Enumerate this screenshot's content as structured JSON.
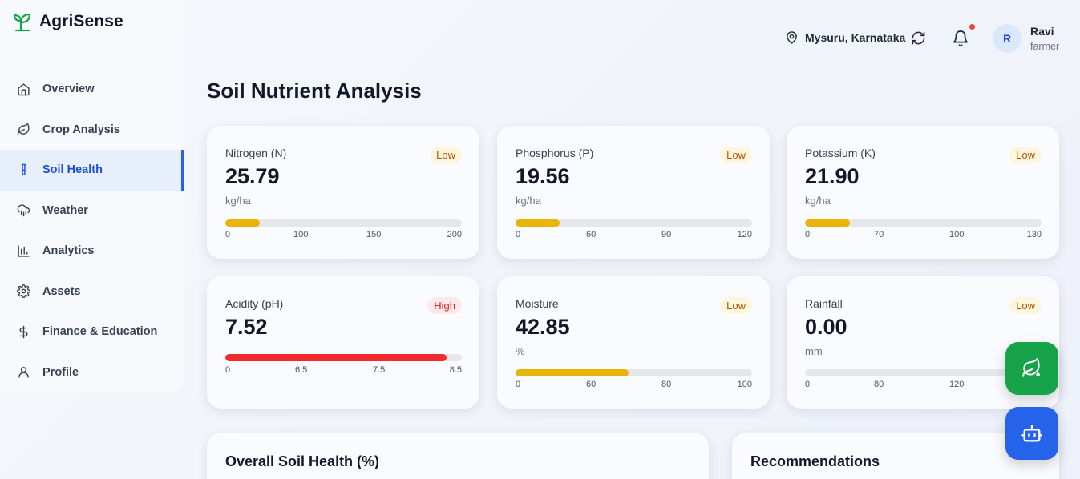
{
  "app": {
    "name": "AgriSense"
  },
  "nav": [
    {
      "label": "Overview",
      "icon": "home-icon"
    },
    {
      "label": "Crop Analysis",
      "icon": "leaf-icon"
    },
    {
      "label": "Soil Health",
      "icon": "test-tube-icon",
      "active": true
    },
    {
      "label": "Weather",
      "icon": "cloud-rain-icon"
    },
    {
      "label": "Analytics",
      "icon": "bar-chart-icon"
    },
    {
      "label": "Assets",
      "icon": "gear-icon"
    },
    {
      "label": "Finance & Education",
      "icon": "dollar-icon"
    },
    {
      "label": "Profile",
      "icon": "user-icon"
    }
  ],
  "header": {
    "location": "Mysuru, Karnataka",
    "user": {
      "initial": "R",
      "name": "Ravi",
      "role": "farmer"
    }
  },
  "page": {
    "title": "Soil Nutrient Analysis"
  },
  "cards": [
    {
      "label": "Nitrogen (N)",
      "status": "Low",
      "level": "low",
      "value": "25.79",
      "unit": "kg/ha",
      "fill_fraction": 0.145,
      "color": "#eab308",
      "ticks": [
        "0",
        "100",
        "150",
        "200"
      ]
    },
    {
      "label": "Phosphorus (P)",
      "status": "Low",
      "level": "low",
      "value": "19.56",
      "unit": "kg/ha",
      "fill_fraction": 0.185,
      "color": "#eab308",
      "ticks": [
        "0",
        "60",
        "90",
        "120"
      ]
    },
    {
      "label": "Potassium (K)",
      "status": "Low",
      "level": "low",
      "value": "21.90",
      "unit": "kg/ha",
      "fill_fraction": 0.19,
      "color": "#eab308",
      "ticks": [
        "0",
        "70",
        "100",
        "130"
      ]
    },
    {
      "label": "Acidity (pH)",
      "status": "High",
      "level": "high",
      "value": "7.52",
      "unit": "",
      "fill_fraction": 0.937,
      "color": "#ef2b2d",
      "ticks": [
        "0",
        "6.5",
        "7.5",
        "8.5"
      ]
    },
    {
      "label": "Moisture",
      "status": "Low",
      "level": "low",
      "value": "42.85",
      "unit": "%",
      "fill_fraction": 0.478,
      "color": "#eab308",
      "ticks": [
        "0",
        "60",
        "80",
        "100"
      ]
    },
    {
      "label": "Rainfall",
      "status": "Low",
      "level": "low",
      "value": "0.00",
      "unit": "mm",
      "fill_fraction": 0.0,
      "color": "#eab308",
      "ticks": [
        "0",
        "80",
        "120",
        ""
      ]
    }
  ],
  "panels": {
    "overall": "Overall Soil Health (%)",
    "recommendations": "Recommendations"
  },
  "fabs": [
    {
      "icon": "leaf-scan-icon",
      "color": "#16a34a"
    },
    {
      "icon": "robot-icon",
      "color": "#2563eb"
    }
  ]
}
